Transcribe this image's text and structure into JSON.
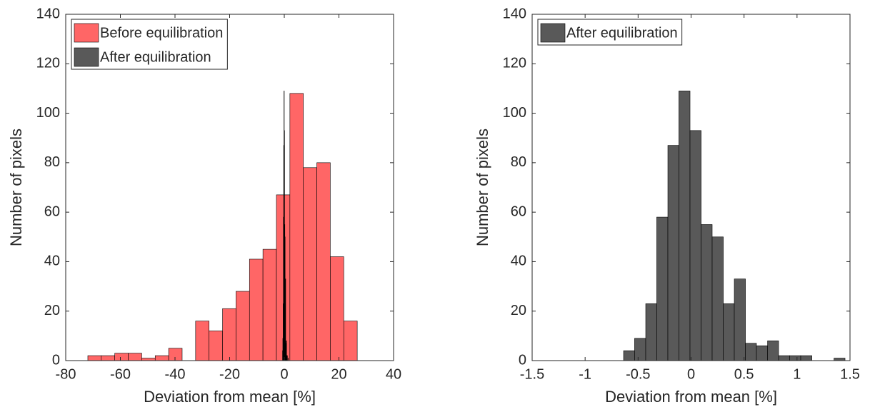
{
  "chart_data": [
    {
      "type": "histogram",
      "xlabel": "Deviation from mean [%]",
      "ylabel": "Number of pixels",
      "xlim": [
        -80,
        40
      ],
      "xticks": [
        -80,
        -60,
        -40,
        -20,
        0,
        20,
        40
      ],
      "ylim": [
        0,
        140
      ],
      "yticks": [
        0,
        20,
        40,
        60,
        80,
        100,
        120,
        140
      ],
      "legend": "northwest",
      "series": [
        {
          "name": "Before equilibration",
          "color": "#ff6666",
          "bins": [
            -71.9,
            -66.97,
            -62.04,
            -57.11,
            -52.18,
            -47.25,
            -42.32,
            -37.39,
            -32.46,
            -27.53,
            -22.6,
            -17.67,
            -12.74,
            -7.81,
            -2.88,
            2.05,
            6.98,
            11.91,
            16.84,
            21.77,
            26.7
          ],
          "values": [
            2,
            2,
            3,
            3,
            1,
            2,
            5,
            0,
            16,
            12,
            21,
            28,
            41,
            45,
            67,
            108,
            78,
            80,
            42,
            16
          ]
        },
        {
          "name": "After equilibration",
          "color": "#595959",
          "bins": [
            -0.637,
            -0.533,
            -0.428,
            -0.324,
            -0.219,
            -0.115,
            -0.01,
            0.095,
            0.199,
            0.304,
            0.408,
            0.513,
            0.617,
            0.722,
            0.826,
            0.931,
            1.035,
            1.14,
            1.244,
            1.349,
            1.453
          ],
          "values": [
            4,
            9,
            23,
            58,
            87,
            109,
            93,
            55,
            50,
            23,
            33,
            7,
            6,
            8,
            2,
            2,
            2,
            0,
            0,
            1
          ]
        }
      ]
    },
    {
      "type": "histogram",
      "xlabel": "Deviation from mean [%]",
      "ylabel": "Number of pixels",
      "xlim": [
        -1.5,
        1.5
      ],
      "xticks": [
        -1.5,
        -1,
        -0.5,
        0,
        0.5,
        1,
        1.5
      ],
      "ylim": [
        0,
        140
      ],
      "yticks": [
        0,
        20,
        40,
        60,
        80,
        100,
        120,
        140
      ],
      "legend": "northwest",
      "series": [
        {
          "name": "After equilibration",
          "color": "#595959",
          "bins": [
            -0.637,
            -0.533,
            -0.428,
            -0.324,
            -0.219,
            -0.115,
            -0.01,
            0.095,
            0.199,
            0.304,
            0.408,
            0.513,
            0.617,
            0.722,
            0.826,
            0.931,
            1.035,
            1.14,
            1.244,
            1.349,
            1.453
          ],
          "values": [
            4,
            9,
            23,
            58,
            87,
            109,
            93,
            55,
            50,
            23,
            33,
            7,
            6,
            8,
            2,
            2,
            2,
            0,
            0,
            1
          ]
        }
      ]
    }
  ]
}
